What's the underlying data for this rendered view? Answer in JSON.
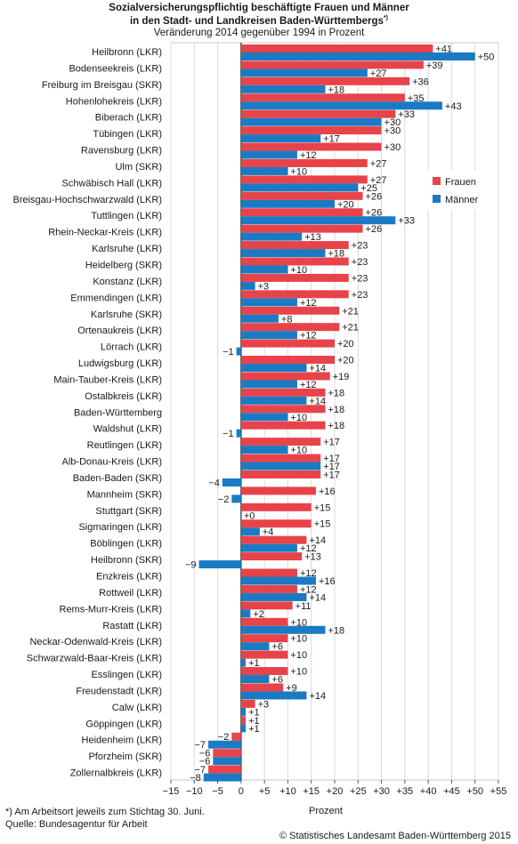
{
  "chart_data": {
    "type": "bar",
    "orientation": "horizontal",
    "title_line1": "Sozialversicherungspflichtig beschäftigte Frauen und Männer",
    "title_line2": "in den Stadt- und Landkreisen Baden-Württembergs",
    "title_line2_suffix": "*)",
    "subtitle": "Veränderung 2014 gegenüber 1994 in Prozent",
    "xlabel": "Prozent",
    "xlim": [
      -15,
      55
    ],
    "xticks": [
      -15,
      -10,
      -5,
      0,
      5,
      10,
      15,
      20,
      25,
      30,
      35,
      40,
      45,
      50,
      55
    ],
    "xtick_labels": [
      "−15",
      "−10",
      "−5",
      "0",
      "+5",
      "+10",
      "+15",
      "+20",
      "+25",
      "+30",
      "+35",
      "+40",
      "+45",
      "+50",
      "+55"
    ],
    "grid": "vertical",
    "legend_position": "right",
    "categories": [
      "Heilbronn (LKR)",
      "Bodenseekreis (LKR)",
      "Freiburg im Breisgau (SKR)",
      "Hohenlohekreis (LKR)",
      "Biberach (LKR)",
      "Tübingen (LKR)",
      "Ravensburg (LKR)",
      "Ulm (SKR)",
      "Schwäbisch Hall (LKR)",
      "Breisgau-Hochschwarzwald (LKR)",
      "Tuttlingen (LKR)",
      "Rhein-Neckar-Kreis (LKR)",
      "Karlsruhe (LKR)",
      "Heidelberg (SKR)",
      "Konstanz (LKR)",
      "Emmendingen (LKR)",
      "Karlsruhe (SKR)",
      "Ortenaukreis (LKR)",
      "Lörrach (LKR)",
      "Ludwigsburg (LKR)",
      "Main-Tauber-Kreis (LKR)",
      "Ostalbkreis (LKR)",
      "Baden-Württemberg",
      "Waldshut (LKR)",
      "Reutlingen (LKR)",
      "Alb-Donau-Kreis (LKR)",
      "Baden-Baden (SKR)",
      "Mannheim (SKR)",
      "Stuttgart (SKR)",
      "Sigmaringen (LKR)",
      "Böblingen (LKR)",
      "Heilbronn (SKR)",
      "Enzkreis (LKR)",
      "Rottweil (LKR)",
      "Rems-Murr-Kreis (LKR)",
      "Rastatt (LKR)",
      "Neckar-Odenwald-Kreis (LKR)",
      "Schwarzwald-Baar-Kreis (LKR)",
      "Esslingen (LKR)",
      "Freudenstadt (LKR)",
      "Calw (LKR)",
      "Göppingen (LKR)",
      "Heidenheim (LKR)",
      "Pforzheim (SKR)",
      "Zollernalbkreis (LKR)"
    ],
    "series": [
      {
        "name": "Frauen",
        "color": "#e8434a",
        "values": [
          41,
          39,
          36,
          35,
          33,
          30,
          30,
          27,
          27,
          26,
          26,
          26,
          23,
          23,
          23,
          23,
          21,
          21,
          20,
          20,
          19,
          18,
          18,
          18,
          17,
          17,
          17,
          16,
          15,
          15,
          14,
          13,
          12,
          12,
          11,
          10,
          10,
          10,
          10,
          9,
          3,
          1,
          -2,
          -6,
          -7
        ],
        "labels": [
          "+41",
          "+39",
          "+36",
          "+35",
          "+33",
          "+30",
          "+30",
          "+27",
          "+27",
          "+26",
          "+26",
          "+26",
          "+23",
          "+23",
          "+23",
          "+23",
          "+21",
          "+21",
          "+20",
          "+20",
          "+19",
          "+18",
          "+18",
          "+18",
          "+17",
          "+17",
          "+17",
          "+16",
          "+15",
          "+15",
          "+14",
          "+13",
          "+12",
          "+12",
          "+11",
          "+10",
          "+10",
          "+10",
          "+10",
          "+9",
          "+3",
          "+1",
          "−2",
          "−6",
          "−7"
        ]
      },
      {
        "name": "Männer",
        "color": "#1a7bc4",
        "values": [
          50,
          27,
          18,
          43,
          30,
          17,
          12,
          10,
          25,
          20,
          33,
          13,
          18,
          10,
          3,
          12,
          8,
          12,
          -1,
          14,
          12,
          14,
          10,
          -1,
          10,
          17,
          -4,
          -2,
          0,
          4,
          12,
          -9,
          16,
          14,
          2,
          18,
          6,
          1,
          6,
          14,
          1,
          1,
          -7,
          -6,
          -8
        ],
        "labels": [
          "+50",
          "+27",
          "+18",
          "+43",
          "+30",
          "+17",
          "+12",
          "+10",
          "+25",
          "+20",
          "+33",
          "+13",
          "+18",
          "+10",
          "+3",
          "+12",
          "+8",
          "+12",
          "−1",
          "+14",
          "+12",
          "+14",
          "+10",
          "−1",
          "+10",
          "+17",
          "−4",
          "−2",
          "+0",
          "+4",
          "+12",
          "−9",
          "+16",
          "+14",
          "+2",
          "+18",
          "+6",
          "+1",
          "+6",
          "+14",
          "+1",
          "+1",
          "−7",
          "−6",
          "−8"
        ]
      }
    ]
  },
  "footnote": {
    "line1": "*) Am Arbeitsort jeweils zum Stichtag 30. Juni.",
    "line2": "Quelle: Bundesagentur für Arbeit"
  },
  "copyright": "© Statistisches Landesamt Baden-Württemberg 2015"
}
